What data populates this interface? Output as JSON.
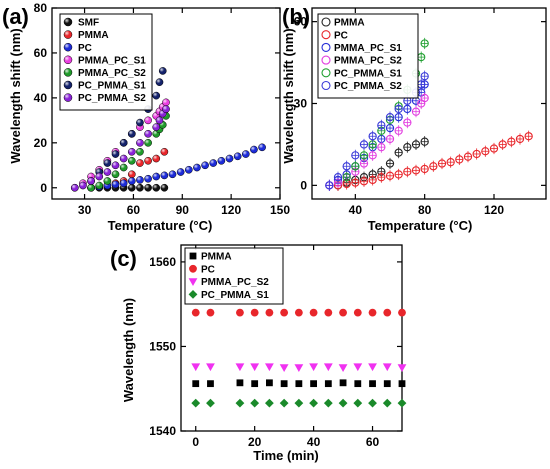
{
  "chart_data": [
    {
      "panel_label": "(a)",
      "type": "scatter",
      "marker_style": "filled shaded spheres",
      "xlabel": "Temperature (°C)",
      "ylabel": "Wavelength shift (nm)",
      "xlim": [
        10,
        150
      ],
      "ylim": [
        -5,
        80
      ],
      "x_ticks": [
        30,
        60,
        90,
        120,
        150
      ],
      "y_ticks": [
        0,
        20,
        40,
        60,
        80
      ],
      "legend_position": "top-left",
      "series": [
        {
          "name": "SMF",
          "color": "#111111",
          "x": [
            34,
            39,
            44,
            49,
            54,
            59,
            64,
            69,
            74,
            79
          ],
          "y": [
            0,
            0,
            0,
            0,
            0,
            0,
            0,
            0,
            0,
            0
          ]
        },
        {
          "name": "PMMA",
          "color": "#e8262b",
          "x": [
            34,
            39,
            44,
            49,
            54,
            59,
            64,
            69,
            74,
            79
          ],
          "y": [
            0,
            0.5,
            1,
            2,
            3,
            6,
            11,
            12,
            13,
            16
          ]
        },
        {
          "name": "PC",
          "color": "#1c2bd8",
          "x": [
            34,
            39,
            44,
            49,
            54,
            59,
            64,
            69,
            74,
            79,
            84,
            89,
            94,
            99,
            104,
            109,
            114,
            119,
            124,
            129,
            134,
            139
          ],
          "y": [
            0,
            0.5,
            1,
            1.5,
            2,
            3,
            3.5,
            4,
            5,
            5.5,
            6,
            7,
            8,
            9,
            10,
            11,
            12,
            13,
            14,
            15,
            17,
            18
          ]
        },
        {
          "name": "PMMA_PC_S1",
          "color": "#ea3ee0",
          "x": [
            24,
            29,
            34,
            39,
            44,
            49,
            54,
            59,
            64,
            69,
            74,
            76,
            78,
            80
          ],
          "y": [
            0,
            2,
            5,
            8,
            12,
            16,
            20,
            24,
            27,
            30,
            32,
            34,
            36,
            38
          ]
        },
        {
          "name": "PMMA_PC_S2",
          "color": "#1f9a2a",
          "x": [
            34,
            39,
            44,
            49,
            54,
            59,
            64,
            69,
            74,
            76,
            78,
            80
          ],
          "y": [
            0,
            1,
            3,
            6,
            9,
            12,
            16,
            20,
            24,
            26,
            28,
            32
          ]
        },
        {
          "name": "PC_PMMA_S1",
          "color": "#14226b",
          "x": [
            34,
            39,
            44,
            49,
            54,
            59,
            64,
            69,
            74,
            76,
            78
          ],
          "y": [
            3,
            7,
            11,
            15,
            20,
            24,
            29,
            35,
            41,
            47,
            52
          ]
        },
        {
          "name": "PC_PMMA_S2",
          "color": "#8a22d8",
          "x": [
            24,
            29,
            34,
            39,
            44,
            49,
            54,
            59,
            64,
            69,
            74,
            76,
            78,
            80
          ],
          "y": [
            0,
            1,
            3,
            5,
            7,
            10,
            13,
            16,
            20,
            24,
            27,
            30,
            33,
            35
          ]
        }
      ]
    },
    {
      "panel_label": "(b)",
      "type": "scatter",
      "marker_style": "open circles with error bars",
      "xlabel": "Temperature (°C)",
      "ylabel": "Wavelength shift (nm)",
      "xlim": [
        15,
        150
      ],
      "ylim": [
        -5,
        65
      ],
      "x_ticks": [
        40,
        80,
        120
      ],
      "y_ticks": [
        0,
        30,
        60
      ],
      "legend_position": "top-left",
      "series": [
        {
          "name": "PMMA",
          "color": "#222222",
          "x": [
            30,
            35,
            40,
            45,
            50,
            55,
            60,
            65,
            70,
            75,
            80
          ],
          "y": [
            0,
            1,
            2,
            3,
            4,
            5,
            8,
            12,
            14,
            15,
            16
          ]
        },
        {
          "name": "PC",
          "color": "#e8262b",
          "x": [
            30,
            35,
            40,
            45,
            50,
            55,
            60,
            65,
            70,
            75,
            80,
            85,
            90,
            95,
            100,
            105,
            110,
            115,
            120,
            125,
            130,
            135,
            140
          ],
          "y": [
            0,
            0.5,
            1,
            1.5,
            2,
            3,
            3.5,
            4,
            5,
            5.5,
            6,
            7,
            8,
            8.5,
            9.5,
            10.5,
            11.5,
            12.5,
            13.5,
            15,
            16,
            17,
            18
          ]
        },
        {
          "name": "PMMA_PC_S1",
          "color": "#2830d8",
          "x": [
            25,
            30,
            35,
            40,
            45,
            50,
            55,
            60,
            65,
            70,
            75,
            78,
            80
          ],
          "y": [
            0,
            2,
            4,
            7,
            10,
            14,
            17,
            21,
            25,
            28,
            31,
            34,
            37
          ]
        },
        {
          "name": "PMMA_PC_S2",
          "color": "#e23ee0",
          "x": [
            25,
            30,
            35,
            40,
            45,
            50,
            55,
            60,
            65,
            70,
            75,
            78,
            80
          ],
          "y": [
            0,
            1,
            3,
            5,
            8,
            11,
            14,
            17,
            20,
            23,
            27,
            30,
            32
          ]
        },
        {
          "name": "PC_PMMA_S1",
          "color": "#22a032",
          "x": [
            35,
            40,
            45,
            50,
            55,
            60,
            65,
            70,
            75,
            78,
            80
          ],
          "y": [
            3,
            7,
            11,
            15,
            20,
            24,
            29,
            35,
            41,
            47,
            52
          ]
        },
        {
          "name": "PC_PMMA_S2",
          "color": "#3a3ad8",
          "x": [
            25,
            30,
            35,
            40,
            45,
            50,
            55,
            60,
            65,
            70,
            75,
            78,
            80
          ],
          "y": [
            0,
            3,
            7,
            11,
            15,
            18,
            22,
            25,
            28,
            31,
            34,
            37,
            40
          ]
        }
      ]
    },
    {
      "panel_label": "(c)",
      "type": "scatter",
      "marker_style": "filled markers",
      "xlabel": "Time (min)",
      "ylabel": "Wavelength (nm)",
      "xlim": [
        -5,
        70
      ],
      "ylim": [
        1540,
        1562
      ],
      "x_ticks": [
        0,
        20,
        40,
        60
      ],
      "y_ticks": [
        1540,
        1550,
        1560
      ],
      "legend_position": "top-left",
      "series": [
        {
          "name": "PMMA",
          "color": "#000000",
          "marker": "square",
          "x": [
            0,
            5,
            15,
            20,
            25,
            30,
            35,
            40,
            45,
            50,
            55,
            60,
            65,
            70
          ],
          "y": [
            1545.6,
            1545.6,
            1545.7,
            1545.6,
            1545.7,
            1545.6,
            1545.6,
            1545.6,
            1545.6,
            1545.7,
            1545.6,
            1545.6,
            1545.6,
            1545.6
          ]
        },
        {
          "name": "PC",
          "color": "#e8262b",
          "marker": "circle",
          "x": [
            0,
            5,
            15,
            20,
            25,
            30,
            35,
            40,
            45,
            50,
            55,
            60,
            65,
            70
          ],
          "y": [
            1554.0,
            1554.0,
            1554.0,
            1554.0,
            1554.0,
            1554.0,
            1554.0,
            1554.0,
            1554.0,
            1554.0,
            1554.0,
            1554.0,
            1554.0,
            1554.0
          ]
        },
        {
          "name": "PMMA_PC_S2",
          "color": "#f032f0",
          "marker": "triangle-down",
          "x": [
            0,
            5,
            15,
            20,
            25,
            30,
            35,
            40,
            45,
            50,
            55,
            60,
            65,
            70
          ],
          "y": [
            1547.6,
            1547.6,
            1547.6,
            1547.6,
            1547.6,
            1547.5,
            1547.5,
            1547.6,
            1547.6,
            1547.5,
            1547.6,
            1547.6,
            1547.6,
            1547.5
          ]
        },
        {
          "name": "PC_PMMA_S1",
          "color": "#1a8a2a",
          "marker": "diamond",
          "x": [
            0,
            5,
            15,
            20,
            25,
            30,
            35,
            40,
            45,
            50,
            55,
            60,
            65,
            70
          ],
          "y": [
            1543.3,
            1543.3,
            1543.3,
            1543.3,
            1543.3,
            1543.3,
            1543.3,
            1543.3,
            1543.3,
            1543.3,
            1543.3,
            1543.3,
            1543.3,
            1543.3
          ]
        }
      ]
    }
  ]
}
